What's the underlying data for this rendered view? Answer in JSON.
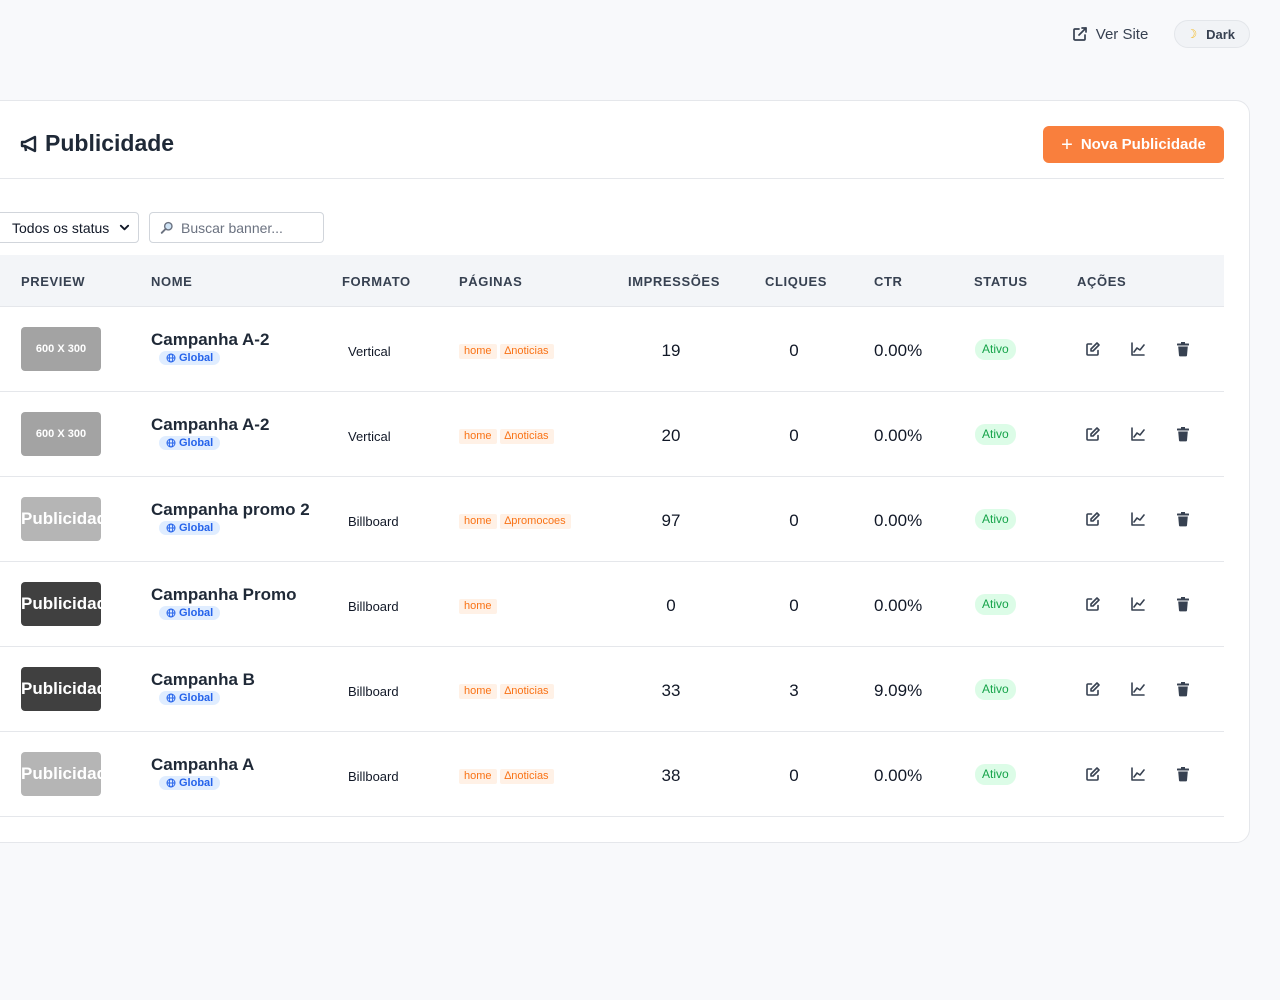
{
  "topbar": {
    "ver_site": "Ver Site",
    "dark": "Dark"
  },
  "header": {
    "title": "Publicidade",
    "new_button": "Nova Publicidade"
  },
  "filters": {
    "status_value": "Todos os status",
    "search_placeholder": "Buscar banner..."
  },
  "table": {
    "headers": [
      "PREVIEW",
      "NOME",
      "FORMATO",
      "PÁGINAS",
      "IMPRESSÕES",
      "CLIQUES",
      "CTR",
      "STATUS",
      "AÇÕES"
    ],
    "rows": [
      {
        "preview": "600 X 300",
        "name": "Campanha A-2",
        "scope": "Global",
        "format": "Vertical",
        "pages": [
          "home",
          "∆noticias"
        ],
        "impressions": "19",
        "clicks": "0",
        "ctr": "0.00%",
        "status": "Ativo"
      },
      {
        "preview": "600 X 300",
        "name": "Campanha A-2",
        "scope": "Global",
        "format": "Vertical",
        "pages": [
          "home",
          "∆noticias"
        ],
        "impressions": "20",
        "clicks": "0",
        "ctr": "0.00%",
        "status": "Ativo"
      },
      {
        "preview": "Publicidade",
        "name": "Campanha promo 2",
        "scope": "Global",
        "format": "Billboard",
        "pages": [
          "home",
          "∆promocoes"
        ],
        "impressions": "97",
        "clicks": "0",
        "ctr": "0.00%",
        "status": "Ativo"
      },
      {
        "preview": "Publicidade",
        "name": "Campanha Promo",
        "scope": "Global",
        "format": "Billboard",
        "pages": [
          "home"
        ],
        "impressions": "0",
        "clicks": "0",
        "ctr": "0.00%",
        "status": "Ativo"
      },
      {
        "preview": "Publicidade",
        "name": "Campanha B",
        "scope": "Global",
        "format": "Billboard",
        "pages": [
          "home",
          "∆noticias"
        ],
        "impressions": "33",
        "clicks": "3",
        "ctr": "9.09%",
        "status": "Ativo"
      },
      {
        "preview": "Publicidade",
        "name": "Campanha A",
        "scope": "Global",
        "format": "Billboard",
        "pages": [
          "home",
          "∆noticias"
        ],
        "impressions": "38",
        "clicks": "0",
        "ctr": "0.00%",
        "status": "Ativo"
      }
    ]
  },
  "preview_colors": [
    "#a3a3a3",
    "#a3a3a3",
    "#b5b5b5",
    "#404040",
    "#404040",
    "#b5b5b5"
  ],
  "colors": {
    "accent": "#f97f3d",
    "tag_text": "#f97316",
    "status_green": "#16a34a",
    "global_blue": "#2563eb"
  },
  "icons": {
    "external": "external-link-icon",
    "moon": "moon-icon",
    "megaphone": "megaphone-icon",
    "search": "search-icon",
    "edit": "edit-icon",
    "stats": "chart-line-icon",
    "delete": "trash-icon",
    "globe": "globe-icon"
  }
}
